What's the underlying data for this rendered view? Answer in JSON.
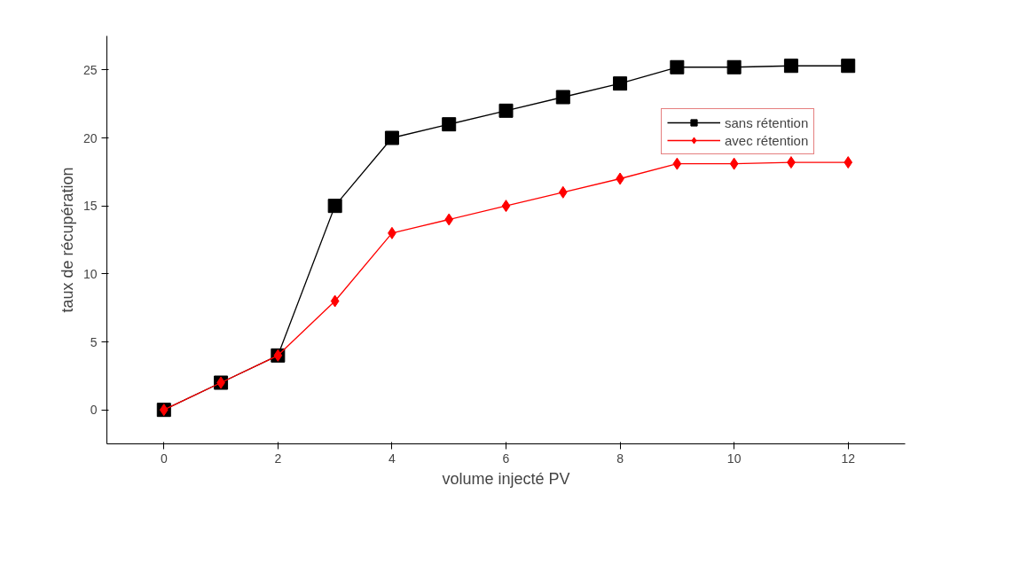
{
  "chart_data": {
    "type": "line",
    "xlabel": "volume injecté PV",
    "ylabel": "taux de récupération",
    "x": [
      0,
      1,
      2,
      3,
      4,
      5,
      6,
      7,
      8,
      9,
      10,
      11,
      12
    ],
    "series": [
      {
        "name": "sans rétention",
        "color": "#000000",
        "marker": "square",
        "values": [
          0,
          2,
          4,
          15,
          20,
          21,
          22,
          23,
          24,
          25.2,
          25.2,
          25.3,
          25.3
        ]
      },
      {
        "name": "avec rétention",
        "color": "#ff0000",
        "marker": "diamond",
        "values": [
          0,
          2,
          4,
          8,
          13,
          14,
          15,
          16,
          17,
          18.1,
          18.1,
          18.2,
          18.2
        ]
      }
    ],
    "xlim": [
      -1,
      13
    ],
    "xticks": [
      0,
      2,
      4,
      6,
      8,
      10,
      12
    ],
    "ylim": [
      -2.5,
      27.5
    ],
    "yticks": [
      0,
      5,
      10,
      15,
      20,
      25
    ],
    "grid": false,
    "legend": "right",
    "line_style": "solid"
  }
}
